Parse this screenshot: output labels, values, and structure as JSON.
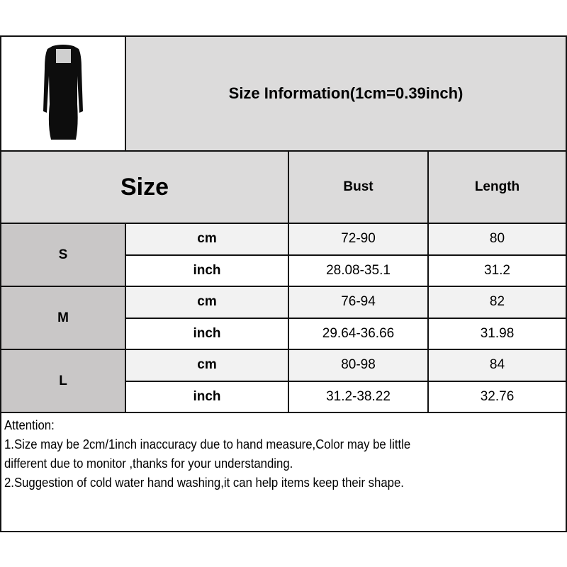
{
  "title": "Size Information(1cm=0.39inch)",
  "product_image": "black-long-sleeve-bodycon-dress",
  "header": {
    "size": "Size",
    "bust": "Bust",
    "length": "Length"
  },
  "rows": [
    {
      "size": "S",
      "cm": {
        "unit": "cm",
        "bust": "72-90",
        "length": "80"
      },
      "inch": {
        "unit": "inch",
        "bust": "28.08-35.1",
        "length": "31.2"
      }
    },
    {
      "size": "M",
      "cm": {
        "unit": "cm",
        "bust": "76-94",
        "length": "82"
      },
      "inch": {
        "unit": "inch",
        "bust": "29.64-36.66",
        "length": "31.98"
      }
    },
    {
      "size": "L",
      "cm": {
        "unit": "cm",
        "bust": "80-98",
        "length": "84"
      },
      "inch": {
        "unit": "inch",
        "bust": "31.2-38.22",
        "length": "32.76"
      }
    }
  ],
  "notes": [
    "Attention:",
    "1.Size may be 2cm/1inch inaccuracy due to hand measure,Color may be little",
    "different due to monitor ,thanks for your understanding.",
    "2.Suggestion of cold water hand washing,it can help items keep their shape."
  ]
}
